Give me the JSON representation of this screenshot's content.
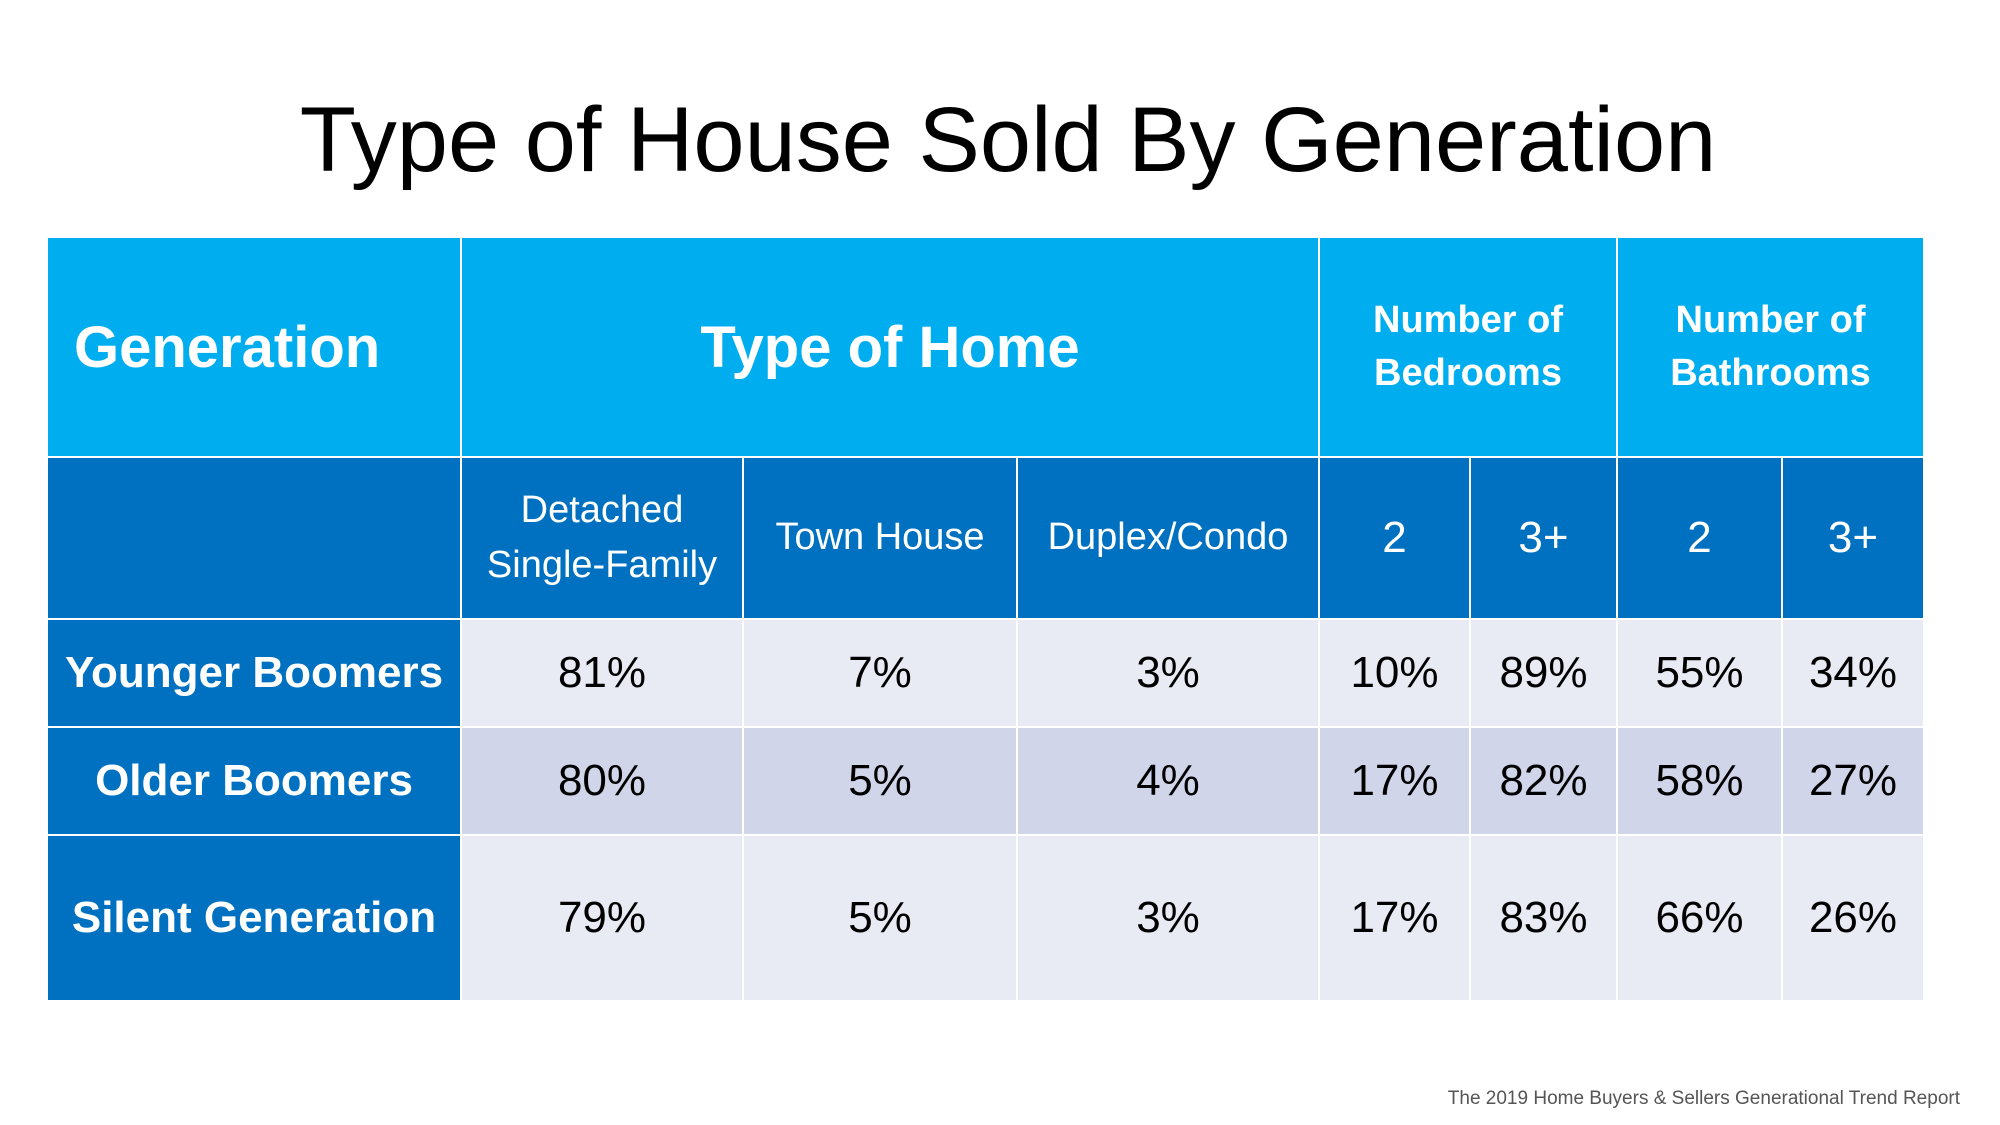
{
  "title": "Type of House Sold By Generation",
  "source": "The 2019 Home Buyers & Sellers Generational Trend Report",
  "colors": {
    "header_top": "#00adef",
    "header_sub": "#0070c0",
    "row_light": "#e8eaf4",
    "row_dark": "#d0d5ea"
  },
  "chart_data": {
    "type": "table",
    "title": "Type of House Sold By Generation",
    "header": {
      "generation": "Generation",
      "type_of_home": "Type of Home",
      "bedrooms": "Number of Bedrooms",
      "bathrooms": "Number of Bathrooms"
    },
    "subheaders": {
      "detached": "Detached Single-Family",
      "town_house": "Town House",
      "duplex": "Duplex/Condo",
      "bed_2": "2",
      "bed_3": "3+",
      "bath_2": "2",
      "bath_3": "3+"
    },
    "rows": [
      {
        "generation": "Younger Boomers",
        "detached": "81%",
        "town_house": "7%",
        "duplex": "3%",
        "bed_2": "10%",
        "bed_3": "89%",
        "bath_2": "55%",
        "bath_3": "34%"
      },
      {
        "generation": "Older Boomers",
        "detached": "80%",
        "town_house": "5%",
        "duplex": "4%",
        "bed_2": "17%",
        "bed_3": "82%",
        "bath_2": "58%",
        "bath_3": "27%"
      },
      {
        "generation": "Silent Generation",
        "detached": "79%",
        "town_house": "5%",
        "duplex": "3%",
        "bed_2": "17%",
        "bed_3": "83%",
        "bath_2": "66%",
        "bath_3": "26%"
      }
    ]
  }
}
